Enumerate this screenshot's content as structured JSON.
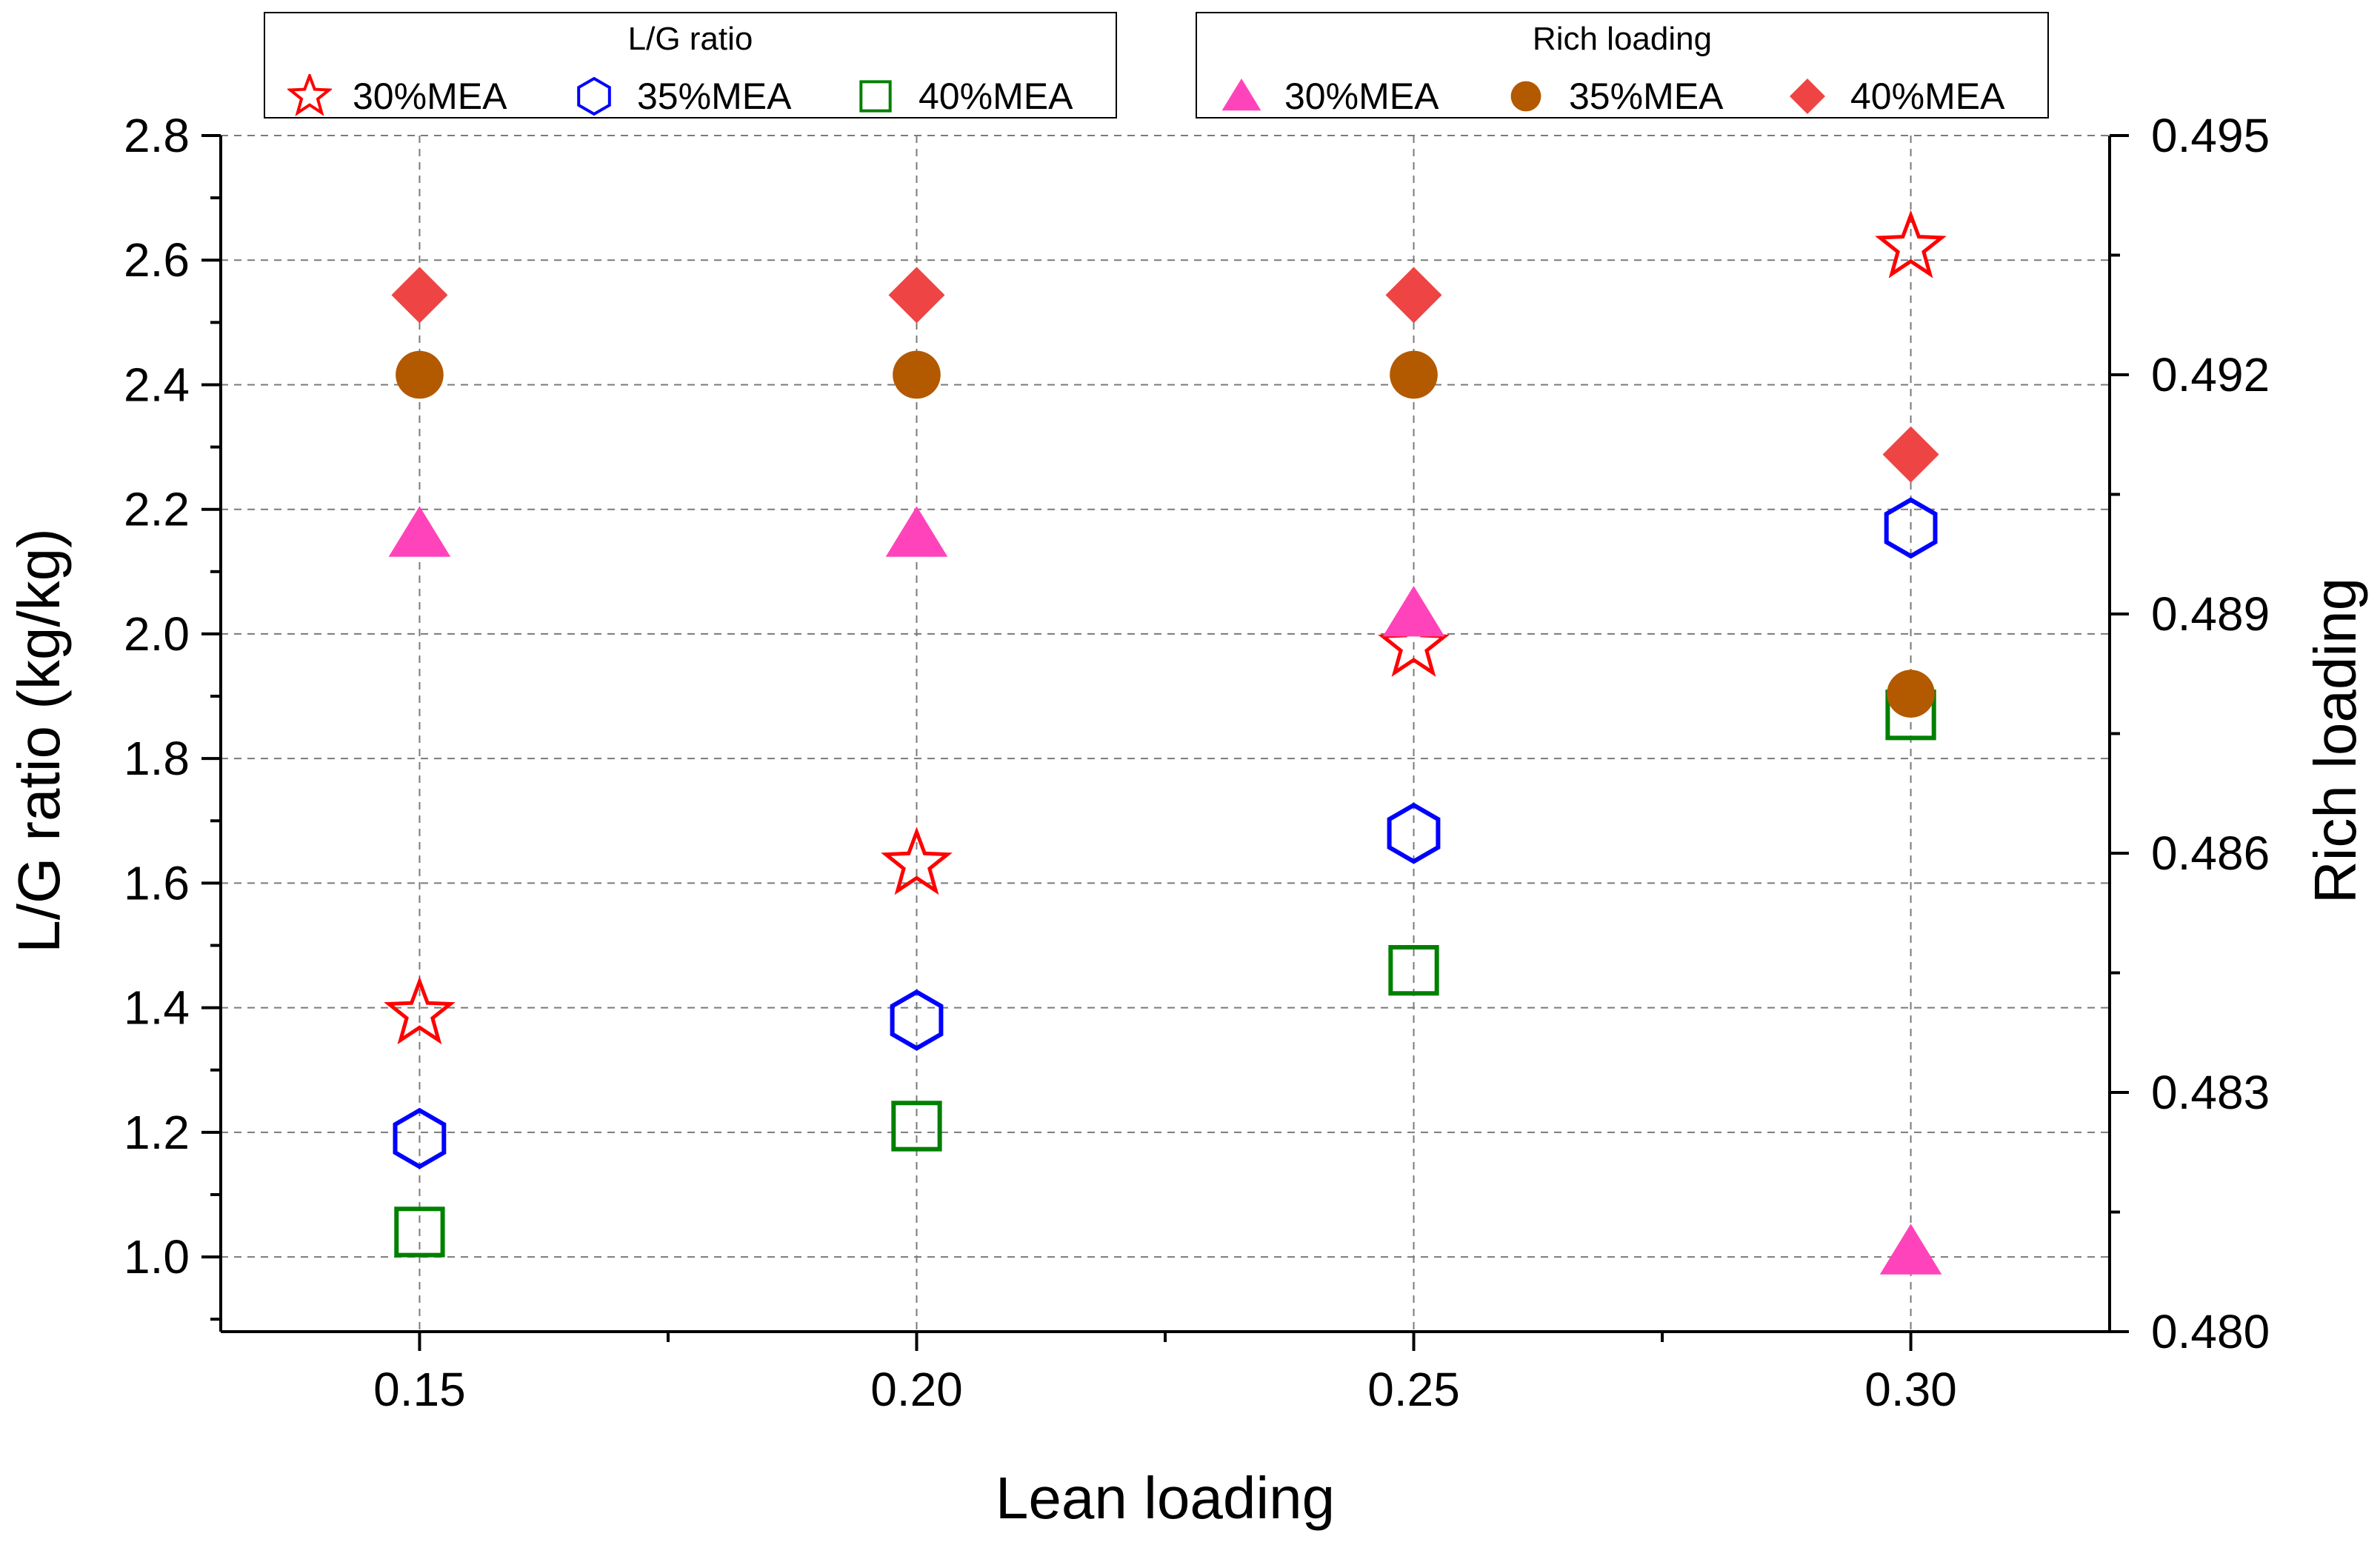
{
  "chart_data": {
    "type": "scatter",
    "xlabel": "Lean loading",
    "ylabel": "L/G ratio (kg/kg)",
    "y2label": "Rich loading",
    "xlim": [
      0.13,
      0.32
    ],
    "ylim": [
      0.88,
      2.8
    ],
    "y2lim": [
      0.48,
      0.495
    ],
    "x_ticks": [
      0.15,
      0.2,
      0.25,
      0.3
    ],
    "x_tick_labels": [
      "0.15",
      "0.20",
      "0.25",
      "0.30"
    ],
    "y_ticks": [
      1.0,
      1.2,
      1.4,
      1.6,
      1.8,
      2.0,
      2.2,
      2.4,
      2.6,
      2.8
    ],
    "y_tick_labels": [
      "1.0",
      "1.2",
      "1.4",
      "1.6",
      "1.8",
      "2.0",
      "2.2",
      "2.4",
      "2.6",
      "2.8"
    ],
    "y2_ticks": [
      0.48,
      0.483,
      0.486,
      0.489,
      0.492,
      0.495
    ],
    "y2_tick_labels": [
      "0.480",
      "0.483",
      "0.486",
      "0.489",
      "0.492",
      "0.495"
    ],
    "grid": true,
    "x": [
      0.15,
      0.2,
      0.25,
      0.3
    ],
    "legends": [
      {
        "title": "L/G ratio",
        "entries": [
          {
            "label": "30%MEA",
            "series": 0
          },
          {
            "label": "35%MEA",
            "series": 1
          },
          {
            "label": "40%MEA",
            "series": 2
          }
        ]
      },
      {
        "title": "Rich loading",
        "entries": [
          {
            "label": "30%MEA",
            "series": 3
          },
          {
            "label": "35%MEA",
            "series": 4
          },
          {
            "label": "40%MEA",
            "series": 5
          }
        ]
      }
    ],
    "series": [
      {
        "name": "L/G ratio 30%MEA",
        "axis": "left",
        "marker": "star-open",
        "color": "#ff0000",
        "values": [
          1.39,
          1.63,
          1.98,
          2.62
        ]
      },
      {
        "name": "L/G ratio 35%MEA",
        "axis": "left",
        "marker": "hexagon-open",
        "color": "#0000ff",
        "values": [
          1.19,
          1.38,
          1.68,
          2.17
        ]
      },
      {
        "name": "L/G ratio 40%MEA",
        "axis": "left",
        "marker": "square-open",
        "color": "#008000",
        "values": [
          1.04,
          1.21,
          1.46,
          1.87
        ]
      },
      {
        "name": "Rich loading 30%MEA",
        "axis": "right",
        "marker": "triangle",
        "color": "#ff44bb",
        "values": [
          0.49,
          0.49,
          0.489,
          0.481
        ]
      },
      {
        "name": "Rich loading 35%MEA",
        "axis": "right",
        "marker": "circle",
        "color": "#b35900",
        "values": [
          0.492,
          0.492,
          0.492,
          0.488
        ]
      },
      {
        "name": "Rich loading 40%MEA",
        "axis": "right",
        "marker": "diamond",
        "color": "#ee4444",
        "values": [
          0.493,
          0.493,
          0.493,
          0.491
        ]
      }
    ]
  }
}
